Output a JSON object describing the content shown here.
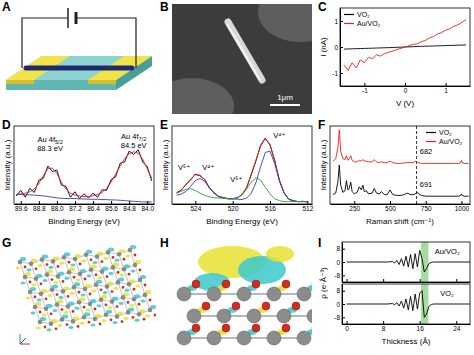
{
  "chart_data": [
    {
      "type": "line",
      "title": "C",
      "xlabel": "V (V)",
      "ylabel": "I (nA)",
      "x": [
        -1.5,
        -1.4,
        -1.3,
        -1.2,
        -1.1,
        -1.0,
        -0.9,
        -0.8,
        -0.7,
        -0.6,
        -0.5,
        -0.4,
        -0.3,
        -0.2,
        -0.1,
        0,
        0.1,
        0.2,
        0.3,
        0.4,
        0.5,
        0.6,
        0.7,
        0.8,
        0.9,
        1.0,
        1.1,
        1.2,
        1.3,
        1.4,
        1.5
      ],
      "series": [
        {
          "name": "VO₂",
          "color": "#000000",
          "values": [
            -0.08,
            -0.075,
            -0.07,
            -0.065,
            -0.06,
            -0.055,
            -0.05,
            -0.045,
            -0.04,
            -0.035,
            -0.03,
            -0.025,
            -0.02,
            -0.01,
            -0.005,
            0,
            0.005,
            0.01,
            0.02,
            0.025,
            0.03,
            0.035,
            0.04,
            0.045,
            0.05,
            0.055,
            0.06,
            0.065,
            0.07,
            0.075,
            0.08
          ]
        },
        {
          "name": "Au/VO₂",
          "color": "#e8211b",
          "values": [
            -0.7,
            -0.9,
            -0.6,
            -0.8,
            -0.5,
            -0.6,
            -0.4,
            -0.45,
            -0.3,
            -0.35,
            -0.25,
            -0.2,
            -0.15,
            -0.1,
            -0.05,
            0,
            0.05,
            0.1,
            0.12,
            0.2,
            0.25,
            0.35,
            0.4,
            0.5,
            0.55,
            0.65,
            0.7,
            0.8,
            0.85,
            0.95,
            1.05
          ]
        }
      ],
      "xlim": [
        -1.6,
        1.6
      ],
      "ylim": [
        -1.5,
        1.5
      ],
      "xticks": [
        -1,
        0,
        1
      ],
      "yticks": [
        -1,
        0,
        1
      ],
      "legend": "upper left"
    },
    {
      "type": "line",
      "title": "D",
      "xlabel": "Binding Energy (eV)",
      "ylabel": "Intensity (a.u.)",
      "x": [
        89.8,
        89.6,
        89.4,
        89.2,
        89.0,
        88.8,
        88.6,
        88.4,
        88.2,
        88.0,
        87.8,
        87.6,
        87.4,
        87.2,
        87.0,
        86.8,
        86.6,
        86.4,
        86.2,
        86.0,
        85.8,
        85.6,
        85.4,
        85.2,
        85.0,
        84.8,
        84.6,
        84.4,
        84.2,
        84.0,
        83.8
      ],
      "series": [
        {
          "color": "#000000",
          "values": [
            22,
            30,
            20,
            33,
            27,
            45,
            48,
            66,
            58,
            60,
            38,
            36,
            20,
            28,
            18,
            25,
            19,
            26,
            20,
            31,
            30,
            46,
            50,
            70,
            72,
            88,
            83,
            90,
            72,
            65,
            44
          ]
        },
        {
          "color": "#e8211b",
          "values": [
            24,
            25,
            26,
            28,
            32,
            40,
            52,
            62,
            63,
            55,
            42,
            32,
            26,
            23,
            22,
            21,
            21,
            22,
            24,
            27,
            33,
            42,
            54,
            66,
            77,
            84,
            87,
            85,
            76,
            62,
            48
          ]
        },
        {
          "color": "#2b3fc4",
          "values": [
            24,
            24,
            23.5,
            23.5,
            23,
            22.5,
            22,
            21,
            20,
            19,
            18.5,
            18,
            18,
            18,
            17.5,
            17.5,
            17,
            17,
            17,
            16.5,
            16.5,
            16,
            16,
            15.5,
            15,
            14.5,
            14,
            13.5,
            13,
            13,
            13
          ]
        }
      ],
      "xlim": [
        89.9,
        83.7
      ],
      "ylim": [
        10,
        125
      ],
      "xticks": [
        89.6,
        88.8,
        {
          "value": 88,
          "label": "88.0"
        },
        87.2,
        86.4,
        85.6,
        84.8,
        {
          "value": 84,
          "label": "84.0"
        }
      ],
      "tick_labels": "x",
      "annotations": [
        {
          "text": "Au 4f5/2",
          "x": 88.3,
          "y": 101
        },
        {
          "text": "88.3 eV",
          "x": 88.3,
          "y": 88
        },
        {
          "text": "Au 4f7/2",
          "x": 84.6,
          "y": 106
        },
        {
          "text": "84.5 eV",
          "x": 84.6,
          "y": 92
        }
      ]
    },
    {
      "type": "line",
      "title": "E",
      "xlabel": "Binding Energy (eV)",
      "ylabel": "Intensity (a.u.)",
      "x": [
        526,
        525.5,
        525,
        524.5,
        524,
        523.5,
        523,
        522.5,
        522,
        521.5,
        521,
        520.5,
        520,
        519.5,
        519,
        518.5,
        518,
        517.5,
        517,
        516.5,
        516,
        515.5,
        515,
        514.5,
        514,
        513.5,
        513,
        512.5,
        512
      ],
      "series": [
        {
          "color": "#000000",
          "values": [
            19,
            23,
            33,
            40,
            50,
            47,
            41,
            27,
            19,
            12,
            11,
            8.5,
            9,
            10,
            16,
            27,
            50,
            72,
            98,
            110,
            98,
            73,
            39,
            19,
            8,
            5.5,
            4,
            4.5,
            3.5
          ]
        },
        {
          "color": "#e8211b",
          "values": [
            18.2,
            23.8,
            31.8,
            41.5,
            48.6,
            48.1,
            40.4,
            27.8,
            18,
            12.6,
            10.1,
            9,
            8.5,
            10.5,
            15.1,
            27.9,
            48.4,
            73.6,
            96.7,
            108.8,
            99.4,
            71.7,
            40.6,
            18.5,
            8.3,
            5,
            4,
            4,
            4
          ]
        },
        {
          "color": "#2b3fc4",
          "values": [
            14.6,
            16.6,
            21,
            29.5,
            39,
            42.5,
            38,
            27,
            18,
            12.6,
            10.1,
            9,
            8.5,
            8,
            7.5,
            10,
            18,
            36,
            62.5,
            86,
            88,
            67.5,
            39.5,
            18.5,
            8.3,
            5,
            4,
            4,
            4
          ]
        },
        {
          "color": "#2ca02c",
          "values": [
            17.6,
            21.2,
            24.3,
            25.5,
            22.6,
            18.1,
            14.4,
            11.8,
            10.5,
            10,
            9.5,
            9,
            8.5,
            10.5,
            15.1,
            24.9,
            36.9,
            43.6,
            39.7,
            27.8,
            16.4,
            8.7,
            5.6,
            4,
            4,
            4,
            4,
            4,
            4
          ]
        }
      ],
      "xlim": [
        526.5,
        511.5
      ],
      "ylim": [
        0,
        130
      ],
      "xticks": [
        524,
        520,
        516,
        512
      ],
      "tick_labels": "x",
      "annotations": [
        {
          "text": "V⁵⁺",
          "x": 525.2,
          "y": 56
        },
        {
          "text": "V⁴⁺",
          "x": 522.6,
          "y": 56
        },
        {
          "text": "V⁵⁺",
          "x": 519.6,
          "y": 36
        },
        {
          "text": "V⁴⁺",
          "x": 515,
          "y": 110
        }
      ]
    },
    {
      "type": "line",
      "title": "F",
      "xlabel": "Raman shift (cm⁻¹)",
      "ylabel": "Intensity (a.u.)",
      "x": [
        100,
        120,
        135,
        145,
        155,
        170,
        185,
        195,
        205,
        215,
        225,
        235,
        250,
        270,
        285,
        300,
        310,
        320,
        335,
        350,
        375,
        390,
        405,
        425,
        440,
        460,
        480,
        500,
        520,
        550,
        580,
        610,
        625,
        640,
        660,
        680,
        690,
        700,
        720,
        750,
        800,
        850,
        900,
        950,
        980,
        995,
        1000,
        1005,
        1020,
        1050
      ],
      "series": [
        {
          "name": "VO₂",
          "color": "#000000",
          "values": [
            12,
            14,
            28,
            50,
            24,
            15,
            17,
            30,
            18,
            20,
            28,
            16,
            13,
            15,
            22,
            18,
            24,
            16,
            17,
            13,
            14,
            20,
            14,
            13,
            16,
            12,
            12,
            18,
            12,
            11,
            11,
            13,
            14,
            12,
            12,
            13,
            15,
            13,
            11,
            10,
            10,
            10,
            10,
            10,
            10,
            11,
            13,
            11,
            10,
            10
          ]
        },
        {
          "name": "Au/VO₂",
          "color": "#e8211b",
          "values": [
            55,
            58,
            72,
            95,
            68,
            58,
            57,
            62,
            56,
            58,
            62,
            56,
            54,
            54,
            56,
            55,
            57,
            55,
            55,
            54,
            54,
            57,
            54,
            53,
            54,
            53,
            53,
            55,
            53,
            52,
            52,
            53,
            53,
            53,
            53,
            55,
            54,
            53,
            52,
            52,
            52,
            52,
            52,
            52,
            52,
            53,
            56,
            53,
            52,
            52
          ]
        }
      ],
      "xlim": [
        80,
        1060
      ],
      "ylim": [
        0,
        100
      ],
      "xticks": [
        250,
        500,
        750,
        1000
      ],
      "tick_labels": "x",
      "legend": "upper right",
      "vlines": [
        686
      ],
      "annotations": [
        {
          "text": "682",
          "x": 752,
          "y": 64
        },
        {
          "text": "691",
          "x": 752,
          "y": 22
        }
      ]
    },
    {
      "type": "line",
      "title": "I",
      "ylabel": "ρ (e·Å⁻³)",
      "x": [
        0,
        2,
        4,
        6,
        8,
        9,
        10,
        10.5,
        11,
        11.5,
        12,
        12.5,
        13,
        13.5,
        14,
        14.5,
        15,
        15.5,
        16,
        16.5,
        17,
        17.5,
        18,
        18.5,
        19,
        20,
        22,
        24,
        26,
        27
      ],
      "series": [
        {
          "color": "#000000",
          "values": [
            0,
            0,
            0,
            0,
            0,
            0,
            0.3,
            -0.6,
            1,
            -1.5,
            2,
            -2.5,
            3.5,
            -3,
            4.5,
            -4,
            5,
            -3,
            7,
            2,
            -6,
            -4,
            -1,
            -0.3,
            0,
            0,
            0,
            0,
            0,
            0
          ]
        }
      ],
      "xlim": [
        -1,
        27
      ],
      "ylim": [
        -12,
        12
      ],
      "xticks": [
        0,
        8,
        16,
        24
      ],
      "yticks": [
        -8,
        0,
        8
      ],
      "tick_labels": "y",
      "band": [
        16.3,
        17.9
      ],
      "annotations": [
        {
          "text": "Au/VO₂",
          "x": 22,
          "y": 5
        }
      ]
    },
    {
      "type": "line",
      "xlabel": "Thickness (Å)",
      "x": [
        0,
        2,
        4,
        6,
        8,
        9,
        10,
        10.5,
        11,
        11.5,
        12,
        12.5,
        13,
        13.5,
        14,
        14.5,
        15,
        15.5,
        16,
        16.5,
        17,
        17.5,
        18,
        18.5,
        19,
        20,
        22,
        24,
        26,
        27
      ],
      "series": [
        {
          "color": "#000000",
          "values": [
            0,
            0,
            0,
            0,
            0,
            0,
            0.3,
            -0.5,
            0.8,
            -1.2,
            1.8,
            -2.5,
            3,
            -3.5,
            4.5,
            -4,
            6,
            -3,
            6.5,
            8,
            -8,
            -6,
            -1.5,
            -0.3,
            0,
            0,
            0,
            0,
            0,
            0
          ]
        }
      ],
      "xlim": [
        -1,
        27
      ],
      "ylim": [
        -12,
        12
      ],
      "xticks": [
        0,
        8,
        16,
        24
      ],
      "yticks": [
        -8,
        0,
        8
      ],
      "band": [
        16.3,
        17.9
      ],
      "annotations": [
        {
          "text": "VO₂",
          "x": 22,
          "y": 5
        }
      ]
    }
  ],
  "panels": [
    {
      "label": "A"
    },
    {
      "label": "B",
      "scale_bar": "1μm"
    },
    {
      "label": "G"
    },
    {
      "label": "H"
    }
  ]
}
